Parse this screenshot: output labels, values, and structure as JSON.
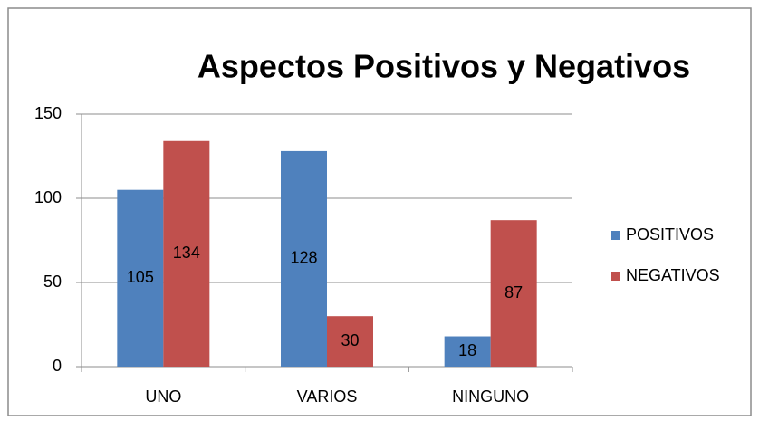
{
  "chart_data": {
    "type": "bar",
    "title": "Aspectos Positivos y Negativos",
    "categories": [
      "UNO",
      "VARIOS",
      "NINGUNO"
    ],
    "series": [
      {
        "name": "POSITIVOS",
        "color": "#4f81bd",
        "values": [
          105,
          128,
          18
        ]
      },
      {
        "name": "NEGATIVOS",
        "color": "#c0504d",
        "values": [
          134,
          30,
          87
        ]
      }
    ],
    "ylim": [
      0,
      150
    ],
    "yticks": [
      0,
      50,
      100,
      150
    ],
    "grid": true,
    "legend": "right"
  }
}
